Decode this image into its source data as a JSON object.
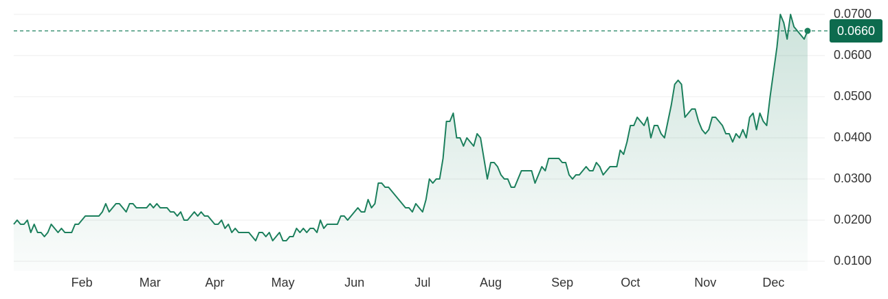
{
  "chart_data": {
    "type": "line",
    "color": "#1b7f5c",
    "grid": true,
    "values": [
      0.019,
      0.02,
      0.019,
      0.019,
      0.02,
      0.017,
      0.019,
      0.017,
      0.017,
      0.016,
      0.017,
      0.019,
      0.018,
      0.017,
      0.018,
      0.017,
      0.017,
      0.017,
      0.019,
      0.019,
      0.02,
      0.021,
      0.021,
      0.021,
      0.021,
      0.021,
      0.022,
      0.024,
      0.022,
      0.023,
      0.024,
      0.024,
      0.023,
      0.022,
      0.024,
      0.024,
      0.023,
      0.023,
      0.023,
      0.023,
      0.024,
      0.023,
      0.024,
      0.023,
      0.023,
      0.023,
      0.022,
      0.022,
      0.021,
      0.022,
      0.02,
      0.02,
      0.021,
      0.022,
      0.021,
      0.022,
      0.021,
      0.021,
      0.02,
      0.019,
      0.019,
      0.02,
      0.018,
      0.019,
      0.017,
      0.018,
      0.017,
      0.017,
      0.017,
      0.017,
      0.016,
      0.015,
      0.017,
      0.017,
      0.016,
      0.017,
      0.015,
      0.016,
      0.017,
      0.015,
      0.015,
      0.016,
      0.016,
      0.018,
      0.017,
      0.018,
      0.017,
      0.018,
      0.018,
      0.017,
      0.02,
      0.018,
      0.019,
      0.019,
      0.019,
      0.019,
      0.021,
      0.021,
      0.02,
      0.021,
      0.022,
      0.023,
      0.022,
      0.022,
      0.025,
      0.023,
      0.024,
      0.029,
      0.029,
      0.028,
      0.028,
      0.027,
      0.026,
      0.025,
      0.024,
      0.023,
      0.023,
      0.022,
      0.024,
      0.023,
      0.022,
      0.025,
      0.03,
      0.029,
      0.03,
      0.03,
      0.035,
      0.044,
      0.044,
      0.046,
      0.04,
      0.04,
      0.038,
      0.04,
      0.039,
      0.038,
      0.041,
      0.04,
      0.035,
      0.03,
      0.034,
      0.034,
      0.033,
      0.031,
      0.03,
      0.03,
      0.028,
      0.028,
      0.03,
      0.032,
      0.032,
      0.032,
      0.032,
      0.029,
      0.031,
      0.033,
      0.032,
      0.035,
      0.035,
      0.035,
      0.035,
      0.034,
      0.034,
      0.031,
      0.03,
      0.031,
      0.031,
      0.032,
      0.033,
      0.032,
      0.032,
      0.034,
      0.033,
      0.031,
      0.032,
      0.033,
      0.033,
      0.033,
      0.037,
      0.036,
      0.039,
      0.043,
      0.043,
      0.045,
      0.044,
      0.043,
      0.045,
      0.04,
      0.043,
      0.043,
      0.041,
      0.04,
      0.044,
      0.048,
      0.053,
      0.054,
      0.053,
      0.045,
      0.046,
      0.047,
      0.047,
      0.044,
      0.042,
      0.041,
      0.042,
      0.045,
      0.045,
      0.044,
      0.043,
      0.041,
      0.041,
      0.039,
      0.041,
      0.04,
      0.042,
      0.04,
      0.045,
      0.046,
      0.042,
      0.046,
      0.044,
      0.043,
      0.05,
      0.056,
      0.062,
      0.07,
      0.068,
      0.064,
      0.07,
      0.067,
      0.066,
      0.065,
      0.064,
      0.066
    ],
    "xticks": [
      {
        "value": 20,
        "label": "Feb"
      },
      {
        "value": 40,
        "label": "Mar"
      },
      {
        "value": 59,
        "label": "Apr"
      },
      {
        "value": 79,
        "label": "May"
      },
      {
        "value": 100,
        "label": "Jun"
      },
      {
        "value": 120,
        "label": "Jul"
      },
      {
        "value": 140,
        "label": "Aug"
      },
      {
        "value": 161,
        "label": "Sep"
      },
      {
        "value": 181,
        "label": "Oct"
      },
      {
        "value": 203,
        "label": "Nov"
      },
      {
        "value": 223,
        "label": "Dec"
      }
    ],
    "ylim": [
      0.01,
      0.07
    ],
    "yticks": [
      {
        "value": 0.01,
        "label": "0.0100"
      },
      {
        "value": 0.02,
        "label": "0.0200"
      },
      {
        "value": 0.03,
        "label": "0.0300"
      },
      {
        "value": 0.04,
        "label": "0.0400"
      },
      {
        "value": 0.05,
        "label": "0.0500"
      },
      {
        "value": 0.06,
        "label": "0.0600"
      },
      {
        "value": 0.07,
        "label": "0.0700"
      }
    ],
    "last_price": {
      "value": 0.066,
      "label": "0.0660"
    }
  }
}
